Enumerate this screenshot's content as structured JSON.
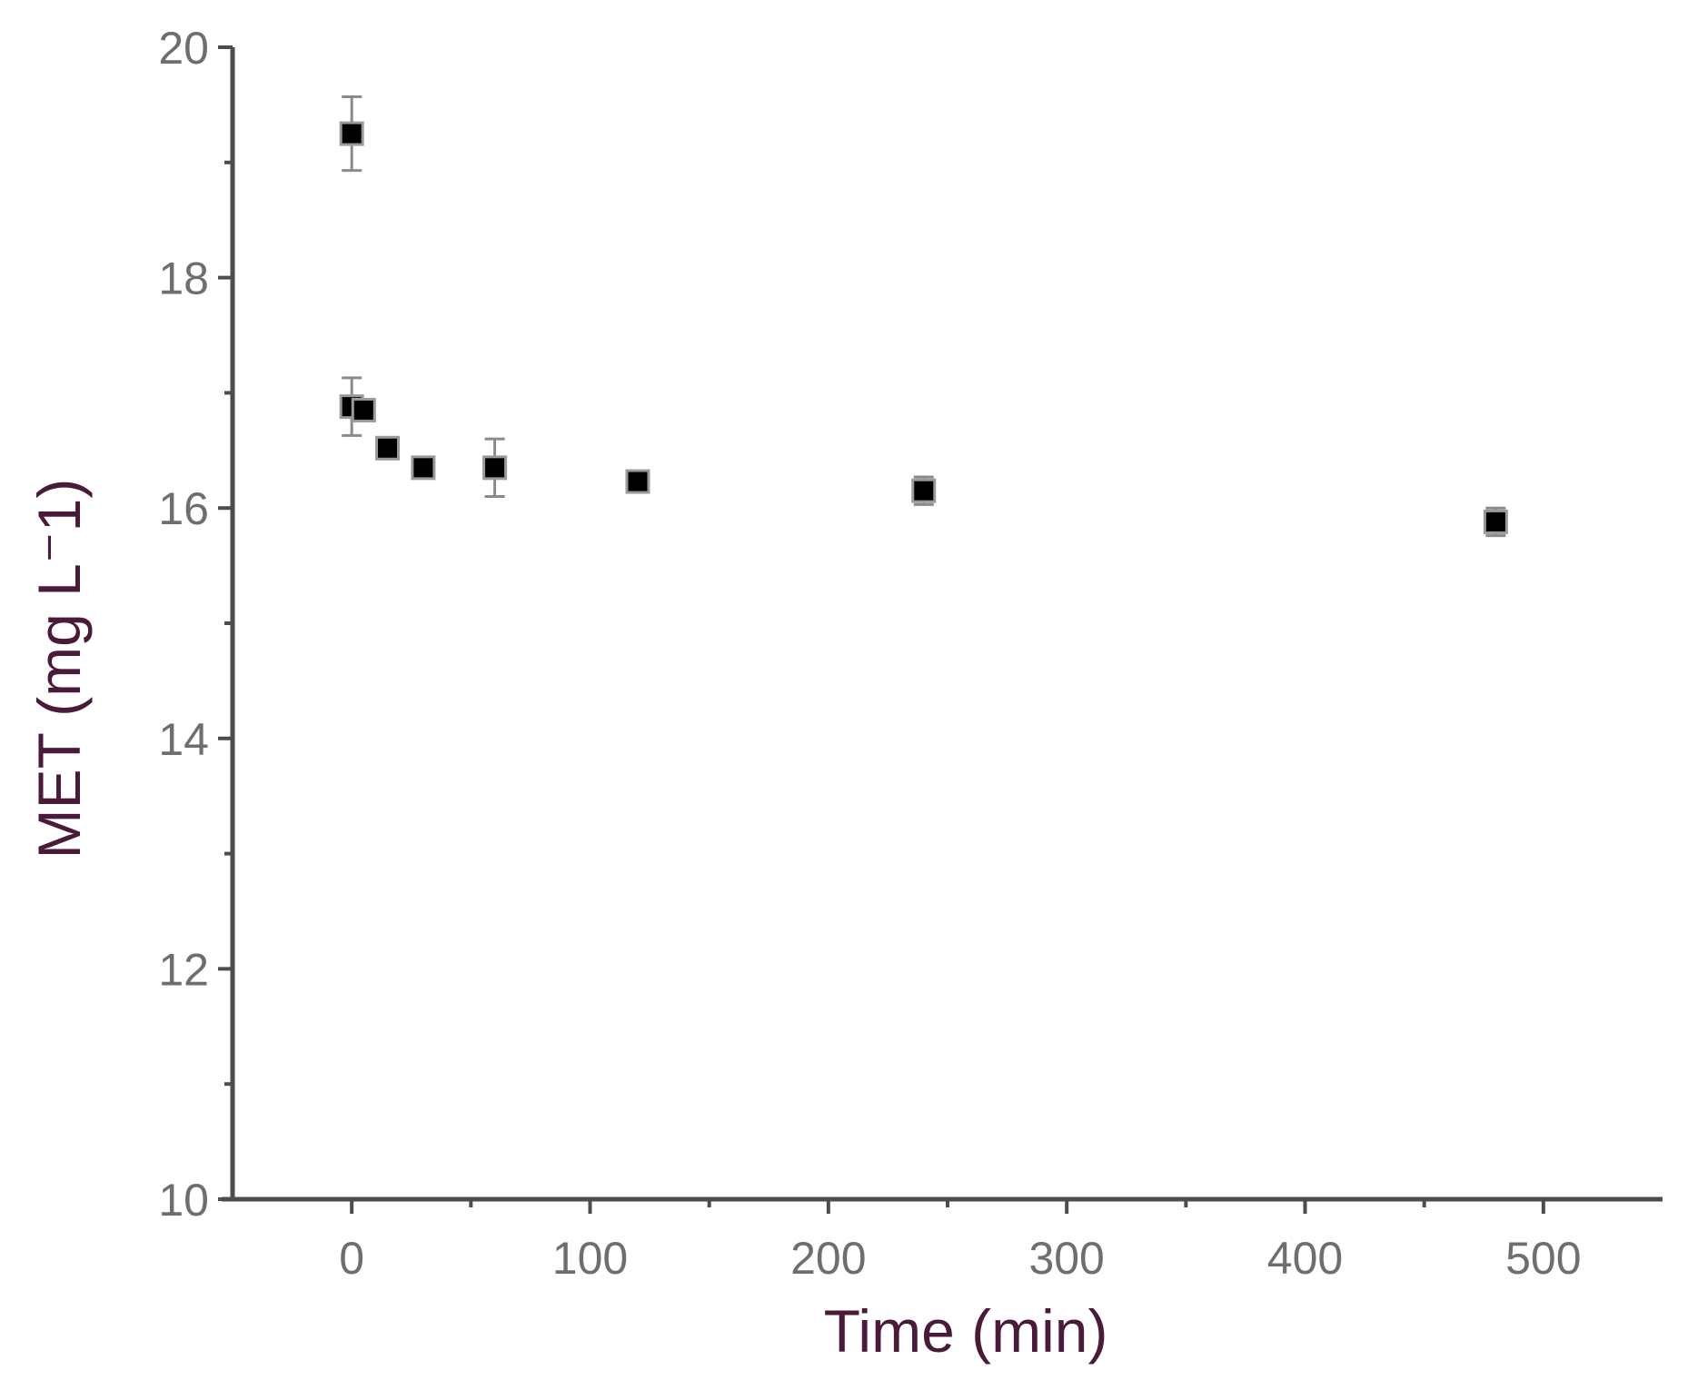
{
  "chart_data": {
    "type": "scatter",
    "title": "",
    "xlabel": "Time (min)",
    "ylabel": "MET (mg L⁻1)",
    "xlim": [
      -50,
      550
    ],
    "ylim": [
      10,
      20
    ],
    "x_ticks": [
      0,
      100,
      200,
      300,
      400,
      500
    ],
    "x_tick_labels": [
      "0",
      "100",
      "200",
      "300",
      "400",
      "500"
    ],
    "x_minor_ticks": [
      50,
      150,
      250,
      350,
      450
    ],
    "y_ticks": [
      10,
      12,
      14,
      16,
      18,
      20
    ],
    "y_tick_labels": [
      "10",
      "12",
      "14",
      "16",
      "18",
      "20"
    ],
    "y_minor_ticks": [
      11,
      13,
      15,
      17,
      19
    ],
    "grid": false,
    "legend": "none",
    "marker": "filled-square",
    "marker_color": "#000000",
    "series": [
      {
        "x": [
          0,
          0,
          5,
          15,
          30,
          60,
          120,
          240,
          480
        ],
        "y": [
          19.25,
          16.88,
          16.85,
          16.52,
          16.35,
          16.35,
          16.23,
          16.15,
          15.88
        ],
        "yerr": [
          0.32,
          0.25,
          0.08,
          0.08,
          0.05,
          0.25,
          0.08,
          0.12,
          0.12
        ]
      }
    ]
  }
}
